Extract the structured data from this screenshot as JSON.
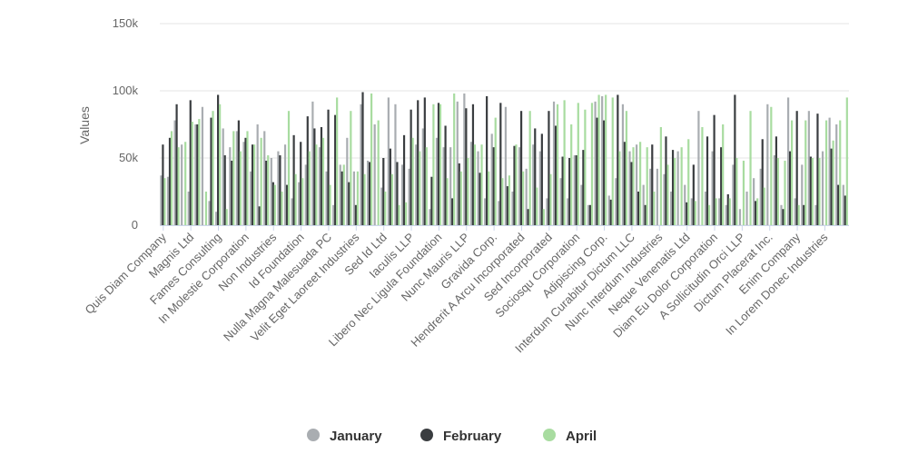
{
  "chart_data": {
    "type": "bar",
    "ylabel": "Values",
    "ylim": [
      0,
      150000
    ],
    "y_ticks": [
      {
        "value": 0,
        "label": "0"
      },
      {
        "value": 50000,
        "label": "50k"
      },
      {
        "value": 100000,
        "label": "100k"
      },
      {
        "value": 150000,
        "label": "150k"
      }
    ],
    "grid": true,
    "legend_position": "bottom-center",
    "category_count": 100,
    "labeled_categories": [
      {
        "index": 0,
        "label": "Quis Diam Company"
      },
      {
        "index": 4,
        "label": "Magnis Ltd"
      },
      {
        "index": 8,
        "label": "Fames Consulting"
      },
      {
        "index": 12,
        "label": "In Molestie Corporation"
      },
      {
        "index": 16,
        "label": "Non Industries"
      },
      {
        "index": 20,
        "label": "Id Foundation"
      },
      {
        "index": 24,
        "label": "Nulla Magna Malesuada PC"
      },
      {
        "index": 28,
        "label": "Velit Eget Laoreet Industries"
      },
      {
        "index": 32,
        "label": "Sed Id Ltd"
      },
      {
        "index": 36,
        "label": "Iaculis LLP"
      },
      {
        "index": 40,
        "label": "Libero Nec Ligula Foundation"
      },
      {
        "index": 44,
        "label": "Nunc Mauris LLP"
      },
      {
        "index": 48,
        "label": "Gravida Corp."
      },
      {
        "index": 52,
        "label": "Hendrerit A Arcu Incorporated"
      },
      {
        "index": 56,
        "label": "Sed Incorporated"
      },
      {
        "index": 60,
        "label": "Sociosqu Corporation"
      },
      {
        "index": 64,
        "label": "Adipiscing Corp."
      },
      {
        "index": 68,
        "label": "Interdum Curabitur Dictum LLC"
      },
      {
        "index": 72,
        "label": "Nunc Interdum Industries"
      },
      {
        "index": 76,
        "label": "Neque Venenatis Ltd"
      },
      {
        "index": 80,
        "label": "Diam Eu Dolor Corporation"
      },
      {
        "index": 84,
        "label": "A Sollicitudin Orci LLP"
      },
      {
        "index": 88,
        "label": "Dictum Placerat Inc."
      },
      {
        "index": 92,
        "label": "Enim Company"
      },
      {
        "index": 96,
        "label": "In Lorem Donec Industries"
      }
    ],
    "series": [
      {
        "name": "January",
        "color": "#a9adb1",
        "values": [
          37000,
          36000,
          78000,
          60000,
          25000,
          75000,
          88000,
          18000,
          10000,
          72000,
          58000,
          70000,
          62000,
          40000,
          75000,
          70000,
          50000,
          55000,
          60000,
          20000,
          32000,
          45000,
          92000,
          58000,
          40000,
          15000,
          45000,
          65000,
          40000,
          90000,
          48000,
          75000,
          28000,
          95000,
          90000,
          45000,
          42000,
          60000,
          72000,
          12000,
          65000,
          58000,
          58000,
          92000,
          98000,
          62000,
          55000,
          20000,
          68000,
          18000,
          88000,
          25000,
          58000,
          42000,
          60000,
          55000,
          20000,
          92000,
          35000,
          20000,
          52000,
          30000,
          15000,
          92000,
          96000,
          22000,
          35000,
          90000,
          55000,
          60000,
          30000,
          42000,
          42000,
          38000,
          25000,
          55000,
          30000,
          20000,
          85000,
          25000,
          55000,
          20000,
          15000,
          45000,
          12000,
          25000,
          35000,
          42000,
          90000,
          52000,
          15000,
          95000,
          20000,
          45000,
          85000,
          15000,
          55000,
          80000,
          75000,
          30000
        ]
      },
      {
        "name": "February",
        "color": "#3a3d40",
        "values": [
          60000,
          65000,
          90000,
          0,
          93000,
          75000,
          0,
          80000,
          97000,
          52000,
          48000,
          78000,
          65000,
          60000,
          14000,
          48000,
          32000,
          52000,
          30000,
          67000,
          62000,
          81000,
          72000,
          73000,
          86000,
          82000,
          40000,
          32000,
          15000,
          99000,
          47000,
          0,
          50000,
          57000,
          47000,
          67000,
          86000,
          93000,
          95000,
          36000,
          91000,
          74000,
          20000,
          46000,
          87000,
          90000,
          39000,
          96000,
          58000,
          91000,
          29000,
          59000,
          85000,
          12000,
          72000,
          68000,
          85000,
          74000,
          51000,
          50000,
          52000,
          56000,
          15000,
          80000,
          78000,
          19000,
          97000,
          62000,
          47000,
          25000,
          15000,
          60000,
          0,
          66000,
          56000,
          0,
          17000,
          45000,
          0,
          66000,
          82000,
          58000,
          23000,
          97000,
          0,
          0,
          18000,
          64000,
          0,
          66000,
          12000,
          55000,
          85000,
          15000,
          51000,
          83000,
          0,
          57000,
          30000,
          22000
        ]
      },
      {
        "name": "April",
        "color": "#a8dca0",
        "values": [
          35000,
          70000,
          58000,
          62000,
          77000,
          79000,
          25000,
          85000,
          90000,
          12000,
          70000,
          55000,
          70000,
          60000,
          65000,
          52000,
          30000,
          25000,
          85000,
          38000,
          35000,
          55000,
          60000,
          65000,
          30000,
          95000,
          45000,
          85000,
          40000,
          38000,
          98000,
          78000,
          25000,
          38000,
          15000,
          17000,
          65000,
          55000,
          58000,
          90000,
          90000,
          35000,
          98000,
          40000,
          50000,
          60000,
          60000,
          40000,
          80000,
          35000,
          37000,
          60000,
          40000,
          85000,
          28000,
          12000,
          38000,
          90000,
          93000,
          75000,
          91000,
          86000,
          91000,
          97000,
          97000,
          95000,
          55000,
          85000,
          58000,
          62000,
          58000,
          25000,
          73000,
          45000,
          50000,
          58000,
          64000,
          18000,
          73000,
          15000,
          20000,
          75000,
          20000,
          50000,
          48000,
          85000,
          20000,
          28000,
          88000,
          50000,
          48000,
          78000,
          15000,
          78000,
          50000,
          50000,
          78000,
          63000,
          78000,
          95000
        ]
      }
    ]
  }
}
